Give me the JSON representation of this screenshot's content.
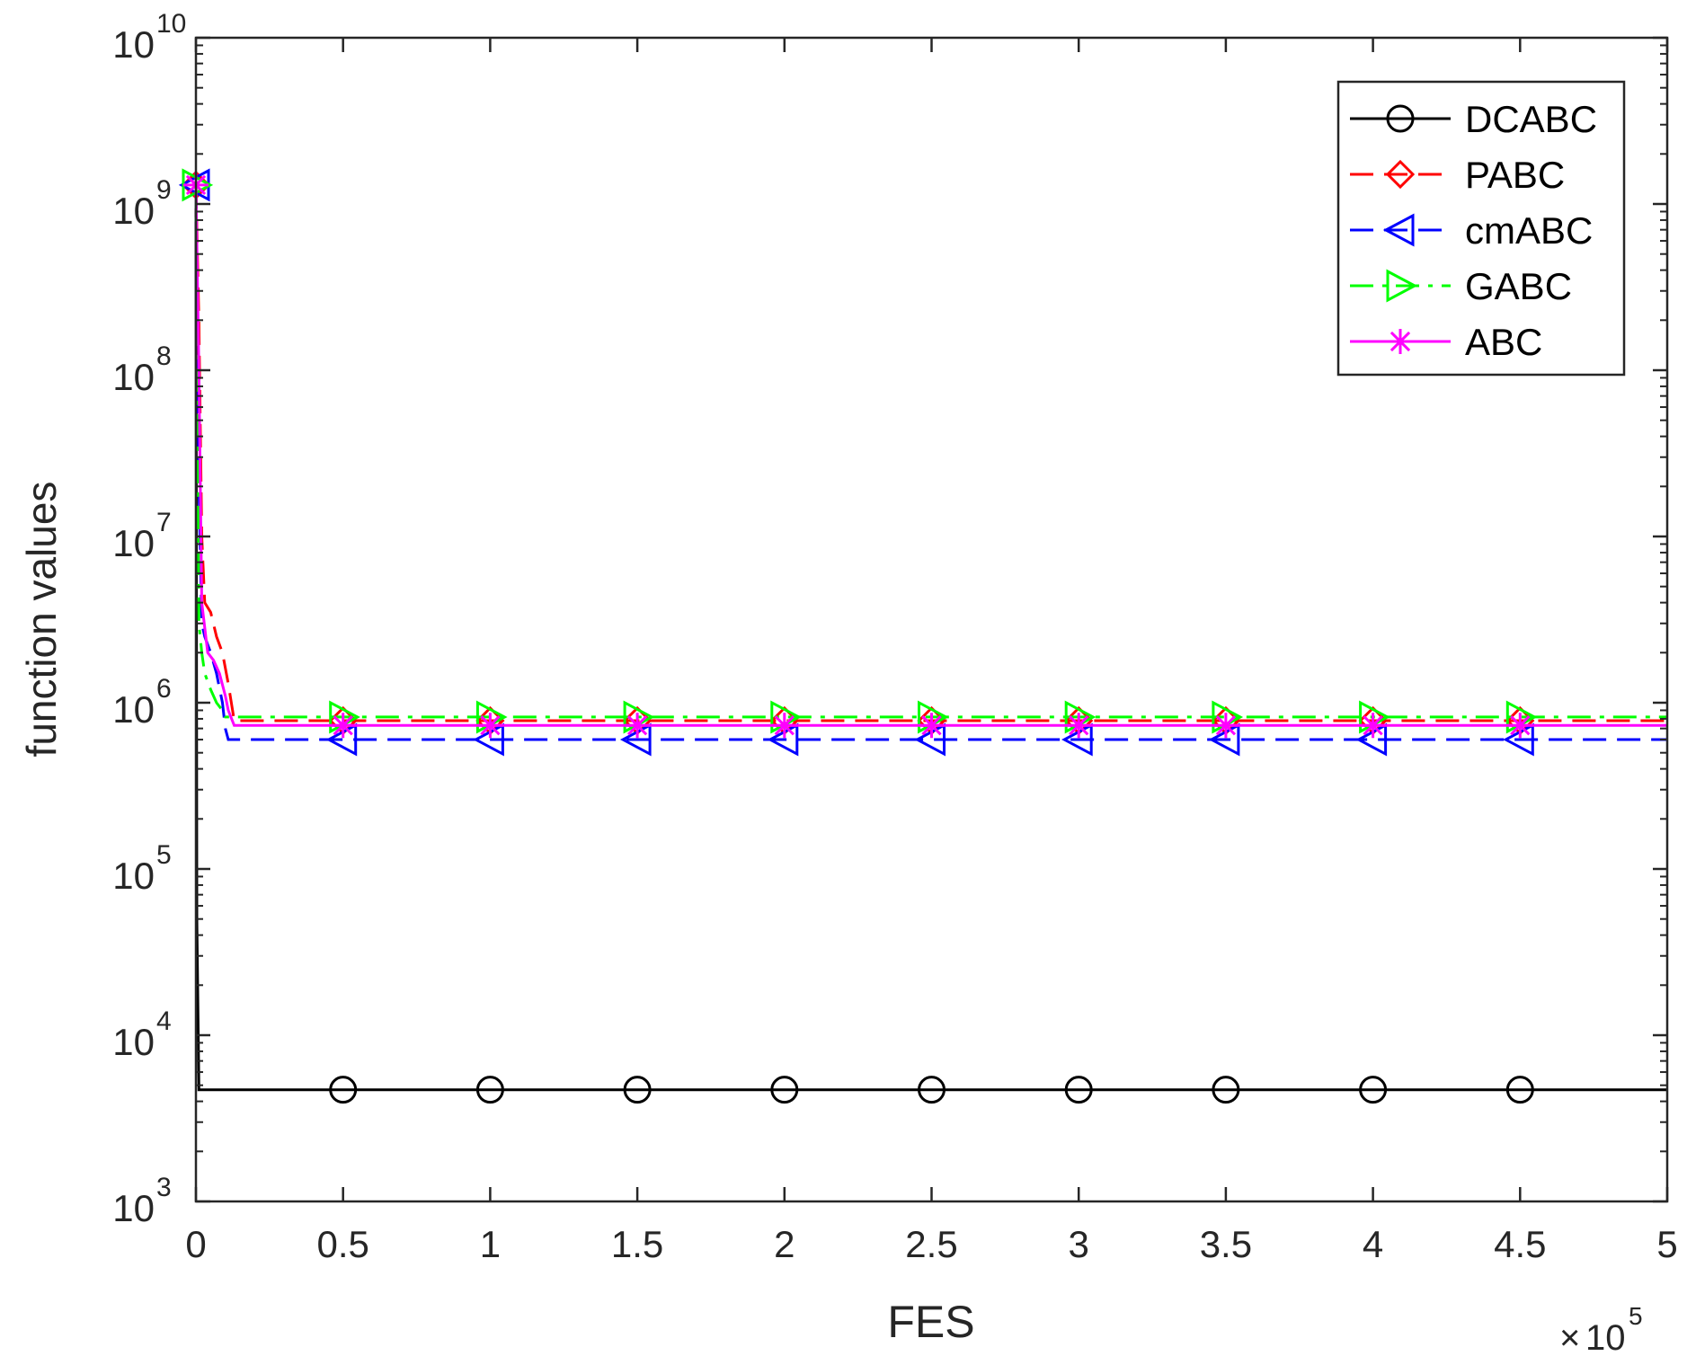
{
  "chart_data": {
    "type": "line",
    "title": "",
    "xlabel": "FES",
    "ylabel": "function values",
    "x_multiplier_base": "10",
    "x_multiplier_exp": "5",
    "x_multiplier_prefix": "×",
    "xlim": [
      0,
      500000
    ],
    "ylim": [
      1000,
      10000000000
    ],
    "yscale": "log",
    "grid": false,
    "legend_position": "top-right",
    "x_ticks": [
      {
        "value": 0,
        "label": "0"
      },
      {
        "value": 50000,
        "label": "0.5"
      },
      {
        "value": 100000,
        "label": "1"
      },
      {
        "value": 150000,
        "label": "1.5"
      },
      {
        "value": 200000,
        "label": "2"
      },
      {
        "value": 250000,
        "label": "2.5"
      },
      {
        "value": 300000,
        "label": "3"
      },
      {
        "value": 350000,
        "label": "3.5"
      },
      {
        "value": 400000,
        "label": "4"
      },
      {
        "value": 450000,
        "label": "4.5"
      },
      {
        "value": 500000,
        "label": "5"
      }
    ],
    "y_ticks": [
      {
        "value": 1000,
        "base": "10",
        "exp": "3"
      },
      {
        "value": 10000,
        "base": "10",
        "exp": "4"
      },
      {
        "value": 100000,
        "base": "10",
        "exp": "5"
      },
      {
        "value": 1000000,
        "base": "10",
        "exp": "6"
      },
      {
        "value": 10000000,
        "base": "10",
        "exp": "7"
      },
      {
        "value": 100000000,
        "base": "10",
        "exp": "8"
      },
      {
        "value": 1000000000,
        "base": "10",
        "exp": "9"
      },
      {
        "value": 10000000000,
        "base": "10",
        "exp": "10"
      }
    ],
    "series": [
      {
        "name": "DCABC",
        "color": "#000000",
        "dash": "solid",
        "marker": "circle",
        "x": [
          0,
          300,
          1000,
          500000
        ],
        "y": [
          1300000000,
          50000,
          4700,
          4700
        ],
        "marker_x": [
          50000,
          100000,
          150000,
          200000,
          250000,
          300000,
          350000,
          400000,
          450000
        ],
        "marker_y": [
          4700,
          4700,
          4700,
          4700,
          4700,
          4700,
          4700,
          4700,
          4700
        ]
      },
      {
        "name": "PABC",
        "color": "#ff0000",
        "dash": "dashed",
        "marker": "diamond",
        "x": [
          0,
          1000,
          2000,
          3000,
          5000,
          7000,
          9000,
          11000,
          13000,
          500000
        ],
        "y": [
          1300000000,
          200000000,
          10000000,
          4000000,
          3500000,
          2500000,
          2000000,
          1300000,
          780000,
          780000
        ],
        "marker_x": [
          0,
          50000,
          100000,
          150000,
          200000,
          250000,
          300000,
          350000,
          400000,
          450000
        ],
        "marker_y": [
          1300000000,
          780000,
          780000,
          780000,
          780000,
          780000,
          780000,
          780000,
          780000,
          780000
        ]
      },
      {
        "name": "cmABC",
        "color": "#0000ff",
        "dash": "dashed",
        "marker": "triangle-left",
        "x": [
          0,
          1000,
          2000,
          3000,
          5000,
          7000,
          9000,
          10000,
          11000,
          500000
        ],
        "y": [
          1300000000,
          20000000,
          3000000,
          2500000,
          2000000,
          1500000,
          1000000,
          700000,
          600000,
          600000
        ],
        "marker_x": [
          0,
          50000,
          100000,
          150000,
          200000,
          250000,
          300000,
          350000,
          400000,
          450000
        ],
        "marker_y": [
          1300000000,
          600000,
          600000,
          600000,
          600000,
          600000,
          600000,
          600000,
          600000,
          600000
        ]
      },
      {
        "name": "GABC",
        "color": "#00ff00",
        "dash": "dashdot",
        "marker": "triangle-right",
        "x": [
          0,
          1000,
          2000,
          3000,
          5000,
          7000,
          9000,
          10000,
          500000
        ],
        "y": [
          1300000000,
          3000000,
          2000000,
          1500000,
          1200000,
          1000000,
          900000,
          820000,
          820000
        ],
        "marker_x": [
          0,
          50000,
          100000,
          150000,
          200000,
          250000,
          300000,
          350000,
          400000,
          450000
        ],
        "marker_y": [
          1300000000,
          820000,
          820000,
          820000,
          820000,
          820000,
          820000,
          820000,
          820000,
          820000
        ]
      },
      {
        "name": "ABC",
        "color": "#ff00ff",
        "dash": "solid",
        "marker": "asterisk",
        "x": [
          0,
          1000,
          2000,
          4000,
          6000,
          8000,
          10000,
          11000,
          13000,
          500000
        ],
        "y": [
          1300000000,
          100000000,
          4000000,
          2000000,
          1800000,
          1500000,
          1100000,
          900000,
          730000,
          730000
        ],
        "marker_x": [
          0,
          50000,
          100000,
          150000,
          200000,
          250000,
          300000,
          350000,
          400000,
          450000
        ],
        "marker_y": [
          1300000000,
          730000,
          730000,
          730000,
          730000,
          730000,
          730000,
          730000,
          730000,
          730000
        ]
      }
    ]
  }
}
